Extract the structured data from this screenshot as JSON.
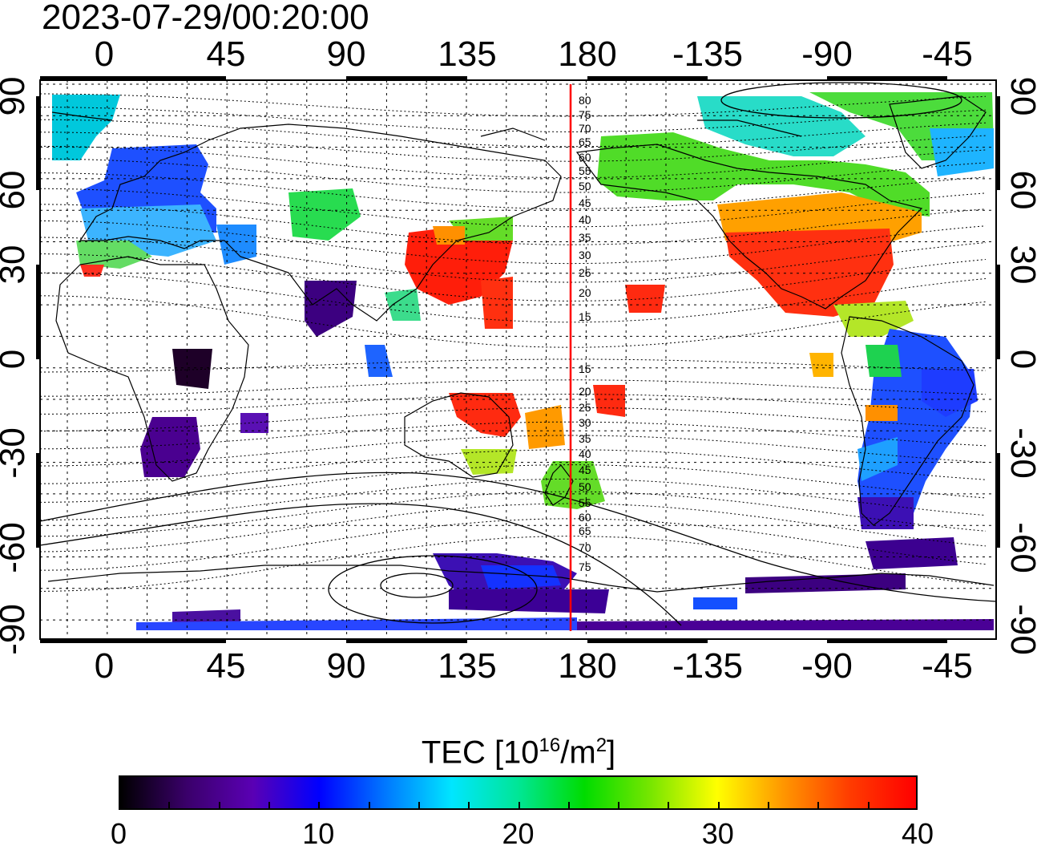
{
  "timestamp": "2023-07-29/00:20:00",
  "map": {
    "lon_ticks": [
      "0",
      "45",
      "90",
      "135",
      "180",
      "-135",
      "-90",
      "-45"
    ],
    "lat_ticks": [
      "90",
      "60",
      "30",
      "0",
      "-30",
      "-60",
      "-90"
    ],
    "meridian_line_longitude": 175,
    "meridian_line_color": "#ff0000",
    "contour_labels_north": [
      "80",
      "75",
      "70",
      "65",
      "60",
      "55",
      "50",
      "45",
      "40",
      "35",
      "30",
      "25",
      "20",
      "15"
    ],
    "contour_labels_south": [
      "15",
      "20",
      "25",
      "30",
      "35",
      "40",
      "45",
      "50",
      "55",
      "60",
      "65",
      "70",
      "75"
    ]
  },
  "colorbar": {
    "title": "TEC  [10",
    "title_sup1": "16",
    "title_mid": "/m",
    "title_sup2": "2",
    "title_end": "]",
    "min": 0,
    "max": 40,
    "tick_labels": [
      "0",
      "10",
      "20",
      "30",
      "40"
    ],
    "palette": [
      "#000000",
      "#3a006a",
      "#5a00b4",
      "#0000ff",
      "#0078ff",
      "#00e6ff",
      "#00e696",
      "#00dc00",
      "#78e600",
      "#ffff00",
      "#ff9600",
      "#ff3c00",
      "#ff0000"
    ]
  }
}
